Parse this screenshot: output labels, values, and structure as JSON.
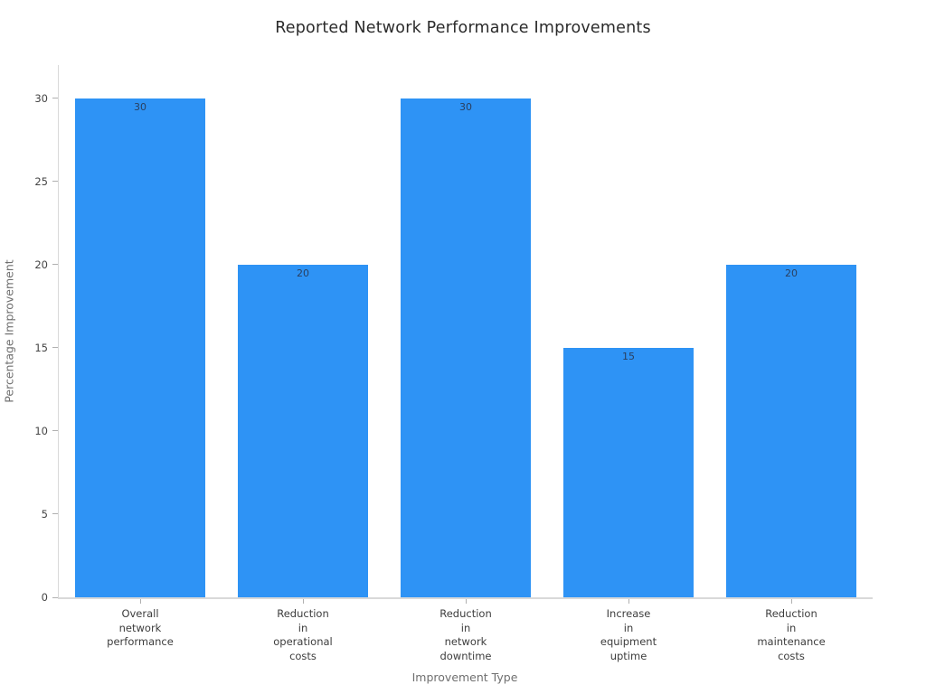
{
  "chart_data": {
    "type": "bar",
    "title": "Reported Network Performance Improvements",
    "xlabel": "Improvement Type",
    "ylabel": "Percentage Improvement",
    "categories": [
      "Overall\nnetwork\nperformance",
      "Reduction\nin\noperational\ncosts",
      "Reduction\nin\nnetwork\ndowntime",
      "Increase\nin\nequipment\nuptime",
      "Reduction\nin\nmaintenance\ncosts"
    ],
    "values": [
      30,
      20,
      30,
      15,
      20
    ],
    "value_labels": [
      "30",
      "20",
      "30",
      "15",
      "20"
    ],
    "yticks": [
      0,
      5,
      10,
      15,
      20,
      25,
      30
    ],
    "ylim": [
      0,
      32
    ],
    "grid": false,
    "legend": false,
    "colors": {
      "bar": "#2E93F5",
      "value_label": "#2a3f5f",
      "spine": "#d9d9d9",
      "tick_mark": "#b0b0b0",
      "tick_label": "#444444",
      "axis_title": "#6f6f6f",
      "title": "#2b2b2b",
      "background": "#ffffff"
    }
  }
}
